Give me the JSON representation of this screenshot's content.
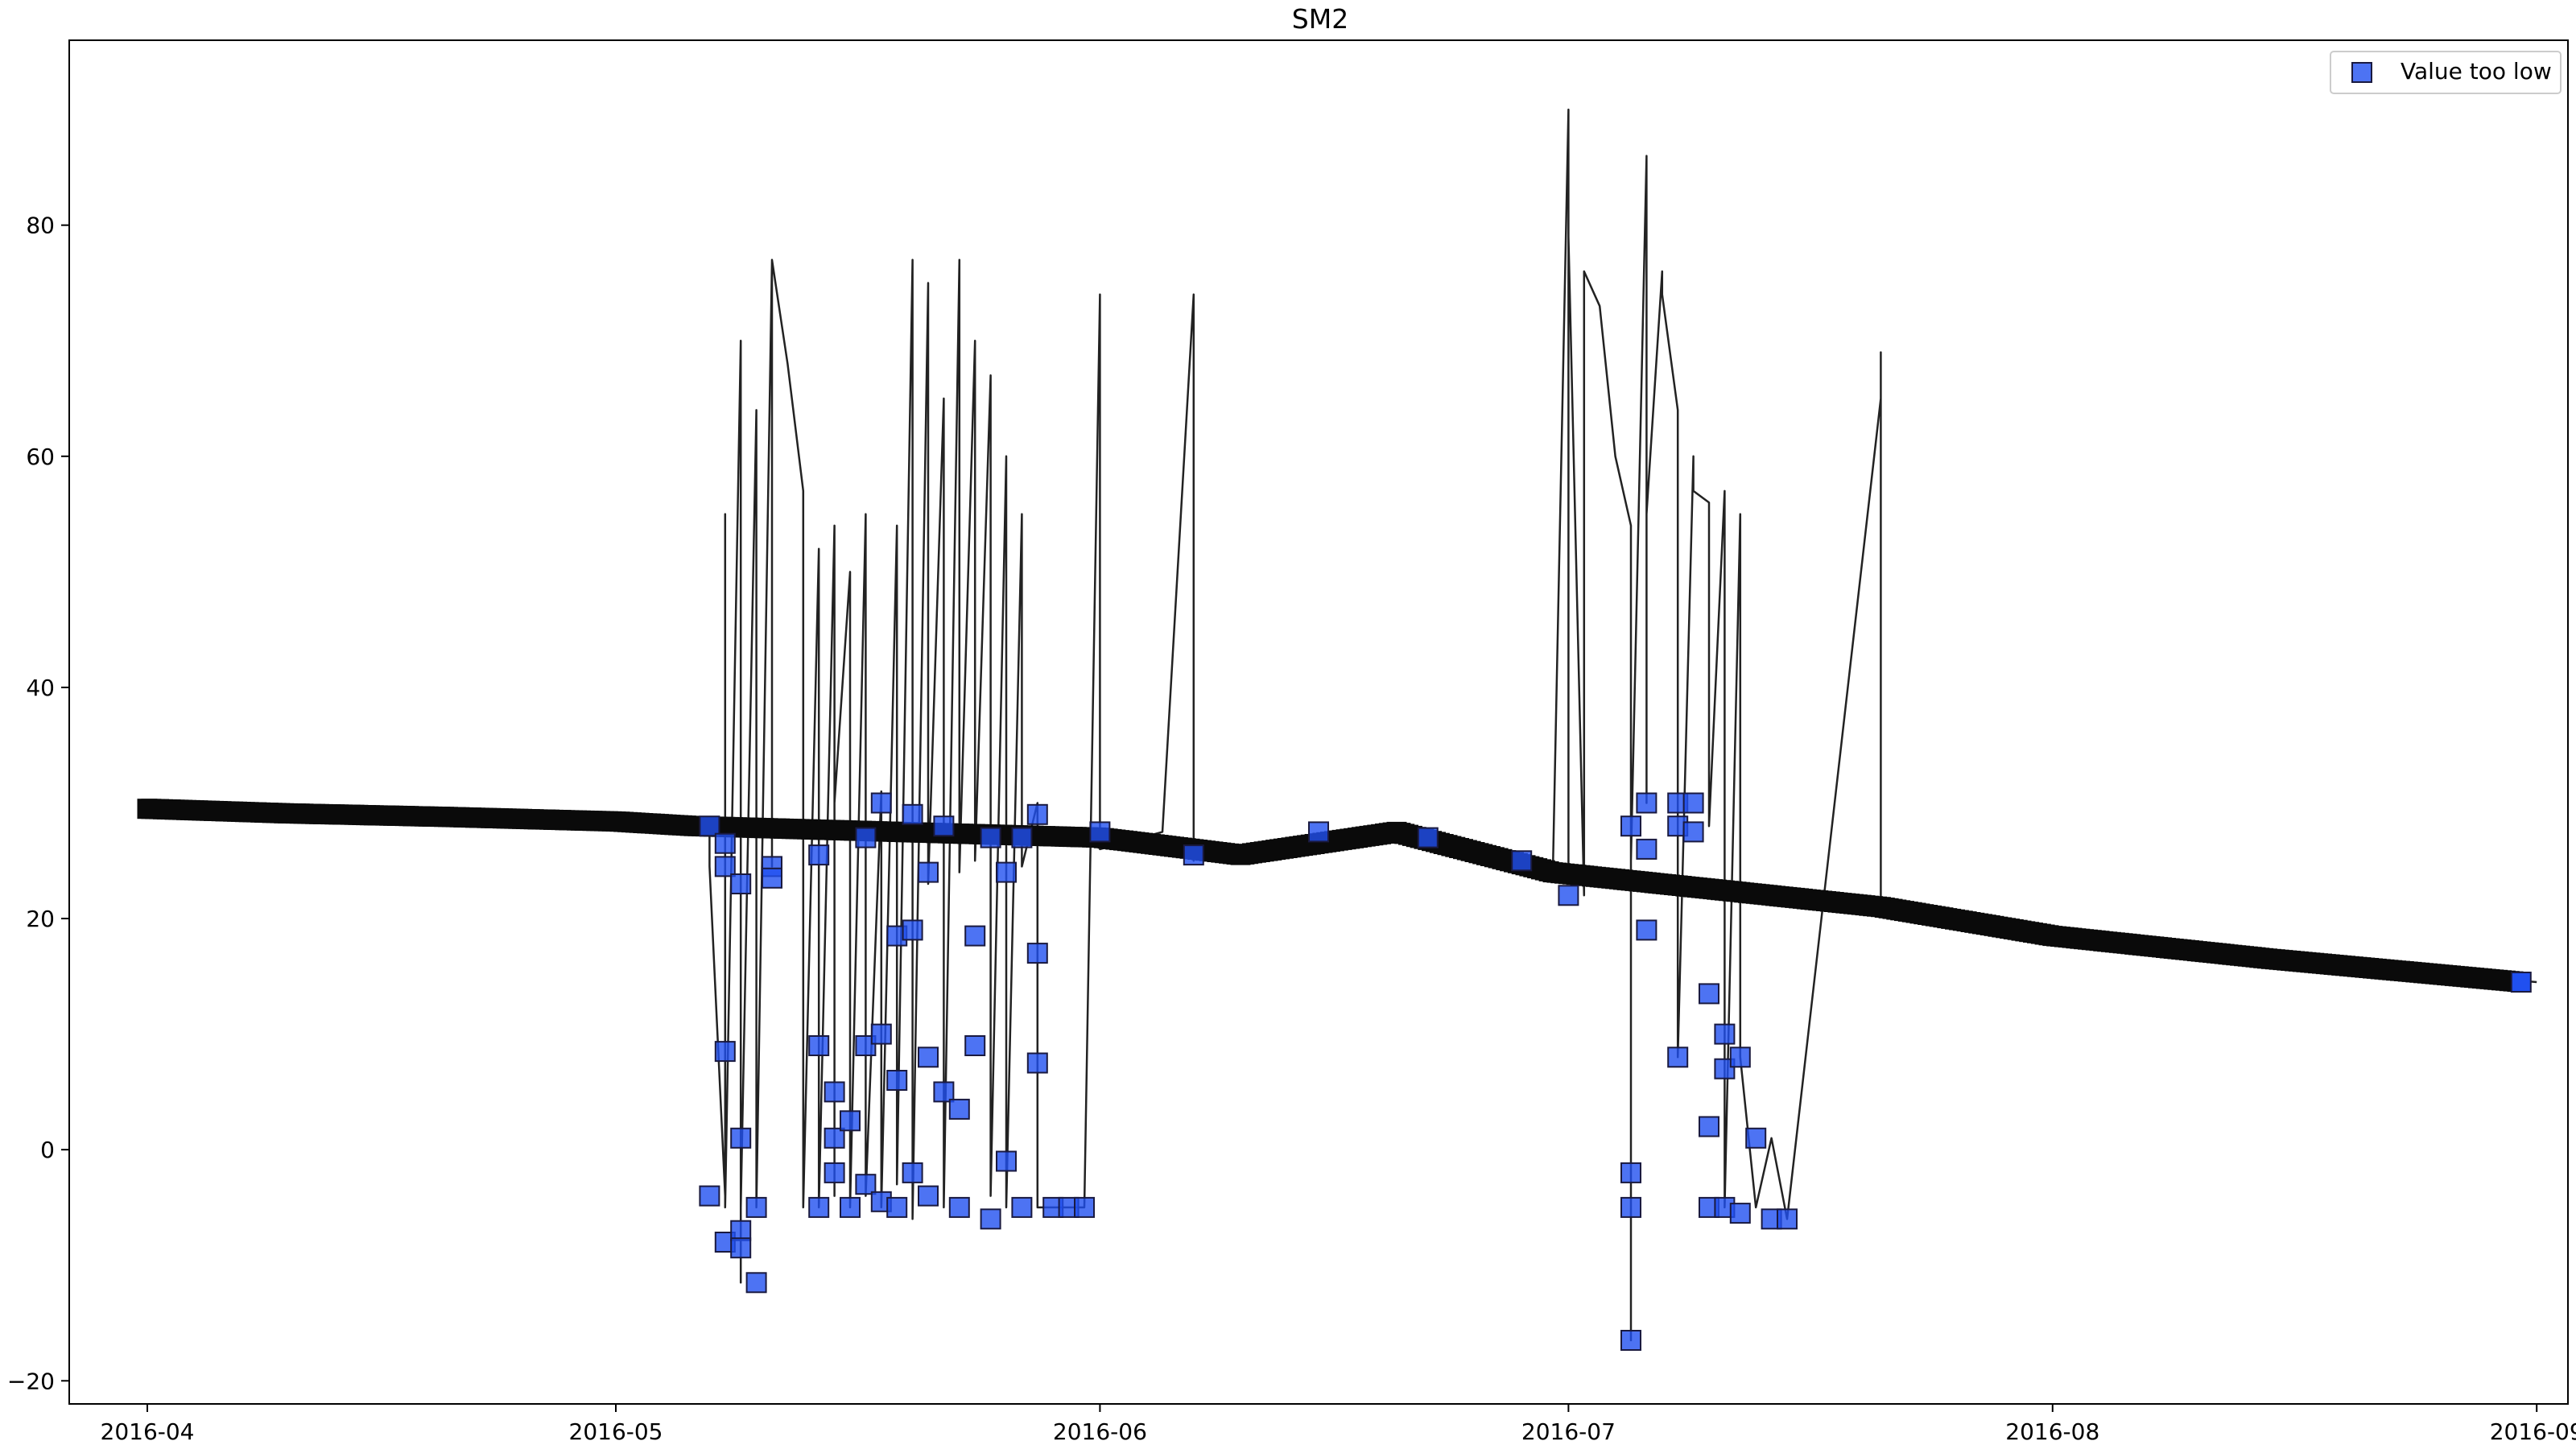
{
  "chart_data": {
    "type": "scatter",
    "title": "SM2",
    "xlabel": "",
    "ylabel": "",
    "x_ticks": [
      "2016-04",
      "2016-05",
      "2016-06",
      "2016-07",
      "2016-08",
      "2016-09"
    ],
    "y_ticks": [
      -20,
      0,
      20,
      40,
      60,
      80
    ],
    "xlim": [
      "2016-03-27",
      "2016-09-03"
    ],
    "ylim": [
      -22,
      96
    ],
    "grid": false,
    "legend_position": "top-right",
    "colors": {
      "line": "#222222",
      "marker_fill": "#2050f0",
      "marker_edge": "#1a1a40",
      "normal_marker": "#0a0a0a"
    },
    "series": [
      {
        "name": "",
        "kind": "line",
        "x": [
          "2016-04-01",
          "2016-04-15",
          "2016-04-20",
          "2016-05-01",
          "2016-05-07",
          "2016-05-07",
          "2016-05-08",
          "2016-05-08",
          "2016-05-08",
          "2016-05-09",
          "2016-05-09",
          "2016-05-09",
          "2016-05-10",
          "2016-05-10",
          "2016-05-10",
          "2016-05-11",
          "2016-05-11",
          "2016-05-11",
          "2016-05-11",
          "2016-05-12",
          "2016-05-13",
          "2016-05-13",
          "2016-05-14",
          "2016-05-14",
          "2016-05-14",
          "2016-05-15",
          "2016-05-15",
          "2016-05-15",
          "2016-05-16",
          "2016-05-16",
          "2016-05-17",
          "2016-05-17",
          "2016-05-18",
          "2016-05-18",
          "2016-05-19",
          "2016-05-19",
          "2016-05-20",
          "2016-05-20",
          "2016-05-21",
          "2016-05-21",
          "2016-05-22",
          "2016-05-22",
          "2016-05-23",
          "2016-05-23",
          "2016-05-24",
          "2016-05-24",
          "2016-05-25",
          "2016-05-25",
          "2016-05-26",
          "2016-05-26",
          "2016-05-27",
          "2016-05-27",
          "2016-05-28",
          "2016-05-28",
          "2016-05-29",
          "2016-05-30",
          "2016-05-31",
          "2016-06-01",
          "2016-06-01",
          "2016-06-01",
          "2016-06-01",
          "2016-06-05",
          "2016-06-07",
          "2016-06-07",
          "2016-06-07",
          "2016-06-07",
          "2016-06-10",
          "2016-06-15",
          "2016-06-20",
          "2016-06-25",
          "2016-06-30",
          "2016-07-01",
          "2016-07-01",
          "2016-07-01",
          "2016-07-02",
          "2016-07-02",
          "2016-07-03",
          "2016-07-04",
          "2016-07-05",
          "2016-07-05",
          "2016-07-05",
          "2016-07-06",
          "2016-07-06",
          "2016-07-06",
          "2016-07-07",
          "2016-07-07",
          "2016-07-08",
          "2016-07-08",
          "2016-07-09",
          "2016-07-09",
          "2016-07-10",
          "2016-07-10",
          "2016-07-11",
          "2016-07-11",
          "2016-07-12",
          "2016-07-12",
          "2016-07-13",
          "2016-07-14",
          "2016-07-15",
          "2016-07-21",
          "2016-07-21",
          "2016-07-21",
          "2016-08-01",
          "2016-08-15",
          "2016-09-01"
        ],
        "y": [
          29.5,
          29.0,
          28.8,
          28.4,
          28.0,
          24.5,
          -4.0,
          55.0,
          -5.0,
          70.0,
          -11.5,
          -5.0,
          64.0,
          62.0,
          -5.0,
          77.0,
          76.0,
          24.5,
          77.0,
          68.0,
          57.0,
          -5.0,
          52.0,
          26.0,
          -5.0,
          54.0,
          -4.0,
          30.0,
          50.0,
          -5.0,
          55.0,
          -4.0,
          31.0,
          -5.0,
          54.0,
          -3.0,
          77.0,
          -6.0,
          75.0,
          23.0,
          65.0,
          -5.0,
          77.0,
          24.0,
          70.0,
          25.0,
          67.0,
          -4.0,
          60.0,
          -5.0,
          55.0,
          24.5,
          30.0,
          -5.0,
          -5.0,
          -5.0,
          -5.0,
          74.0,
          27.0,
          26.5,
          26.0,
          27.5,
          74.0,
          74.0,
          25.0,
          25.5,
          25.0,
          27.0,
          27.5,
          26.5,
          24.0,
          90.0,
          23.5,
          79.0,
          22.0,
          76.0,
          73.0,
          60.0,
          54.0,
          -16.5,
          25.0,
          86.0,
          30.0,
          55.0,
          76.0,
          74.0,
          64.0,
          8.0,
          60.0,
          57.0,
          56.0,
          28.0,
          57.0,
          -5.0,
          55.0,
          8.0,
          -5.0,
          1.0,
          -6.0,
          65.0,
          69.0,
          21.0,
          18.5,
          16.5,
          14.5
        ]
      },
      {
        "name": "",
        "kind": "markers",
        "x": [
          "2016-04-01",
          "2016-04-10",
          "2016-04-20",
          "2016-05-01",
          "2016-05-06",
          "2016-06-01",
          "2016-06-10",
          "2016-06-20",
          "2016-06-30",
          "2016-07-21",
          "2016-08-01",
          "2016-08-15",
          "2016-08-31"
        ],
        "y": [
          29.5,
          29.1,
          28.8,
          28.4,
          28.0,
          27.0,
          25.5,
          27.5,
          24.0,
          21.0,
          18.5,
          16.5,
          14.5
        ]
      },
      {
        "name": "Value too low",
        "kind": "markers",
        "x": [
          "2016-05-07",
          "2016-05-07",
          "2016-05-08",
          "2016-05-08",
          "2016-05-08",
          "2016-05-08",
          "2016-05-09",
          "2016-05-09",
          "2016-05-09",
          "2016-05-09",
          "2016-05-10",
          "2016-05-10",
          "2016-05-11",
          "2016-05-11",
          "2016-05-14",
          "2016-05-14",
          "2016-05-14",
          "2016-05-15",
          "2016-05-15",
          "2016-05-15",
          "2016-05-16",
          "2016-05-16",
          "2016-05-17",
          "2016-05-17",
          "2016-05-17",
          "2016-05-18",
          "2016-05-18",
          "2016-05-18",
          "2016-05-19",
          "2016-05-19",
          "2016-05-19",
          "2016-05-20",
          "2016-05-20",
          "2016-05-20",
          "2016-05-21",
          "2016-05-21",
          "2016-05-21",
          "2016-05-22",
          "2016-05-22",
          "2016-05-23",
          "2016-05-23",
          "2016-05-24",
          "2016-05-24",
          "2016-05-25",
          "2016-05-25",
          "2016-05-26",
          "2016-05-26",
          "2016-05-27",
          "2016-05-27",
          "2016-05-28",
          "2016-05-28",
          "2016-05-28",
          "2016-05-29",
          "2016-05-30",
          "2016-05-31",
          "2016-06-01",
          "2016-06-07",
          "2016-06-15",
          "2016-06-22",
          "2016-06-28",
          "2016-07-01",
          "2016-07-05",
          "2016-07-05",
          "2016-07-05",
          "2016-07-05",
          "2016-07-06",
          "2016-07-06",
          "2016-07-06",
          "2016-07-08",
          "2016-07-08",
          "2016-07-08",
          "2016-07-09",
          "2016-07-09",
          "2016-07-10",
          "2016-07-10",
          "2016-07-10",
          "2016-07-11",
          "2016-07-11",
          "2016-07-11",
          "2016-07-12",
          "2016-07-12",
          "2016-07-13",
          "2016-07-14",
          "2016-07-15"
        ],
        "y": [
          28.0,
          -4.0,
          24.5,
          -8.0,
          8.5,
          26.5,
          1.0,
          -7.0,
          23.0,
          -8.5,
          -11.5,
          -5.0,
          24.5,
          23.5,
          9.0,
          -5.0,
          25.5,
          5.0,
          -2.0,
          1.0,
          2.5,
          -5.0,
          9.0,
          27.0,
          -3.0,
          10.0,
          30.0,
          -4.5,
          18.5,
          6.0,
          -5.0,
          19.0,
          29.0,
          -2.0,
          8.0,
          24.0,
          -4.0,
          5.0,
          28.0,
          3.5,
          -5.0,
          9.0,
          18.5,
          27.0,
          -6.0,
          24.0,
          -1.0,
          27.0,
          -5.0,
          29.0,
          7.5,
          17.0,
          -5.0,
          -5.0,
          -5.0,
          27.5,
          25.5,
          27.5,
          27.0,
          25.0,
          22.0,
          -2.0,
          -5.0,
          -16.5,
          28.0,
          30.0,
          19.0,
          26.0,
          28.0,
          30.0,
          8.0,
          30.0,
          27.5,
          13.5,
          2.0,
          -5.0,
          10.0,
          7.0,
          -5.0,
          8.0,
          -5.5,
          1.0,
          -6.0,
          -6.0
        ]
      }
    ]
  }
}
